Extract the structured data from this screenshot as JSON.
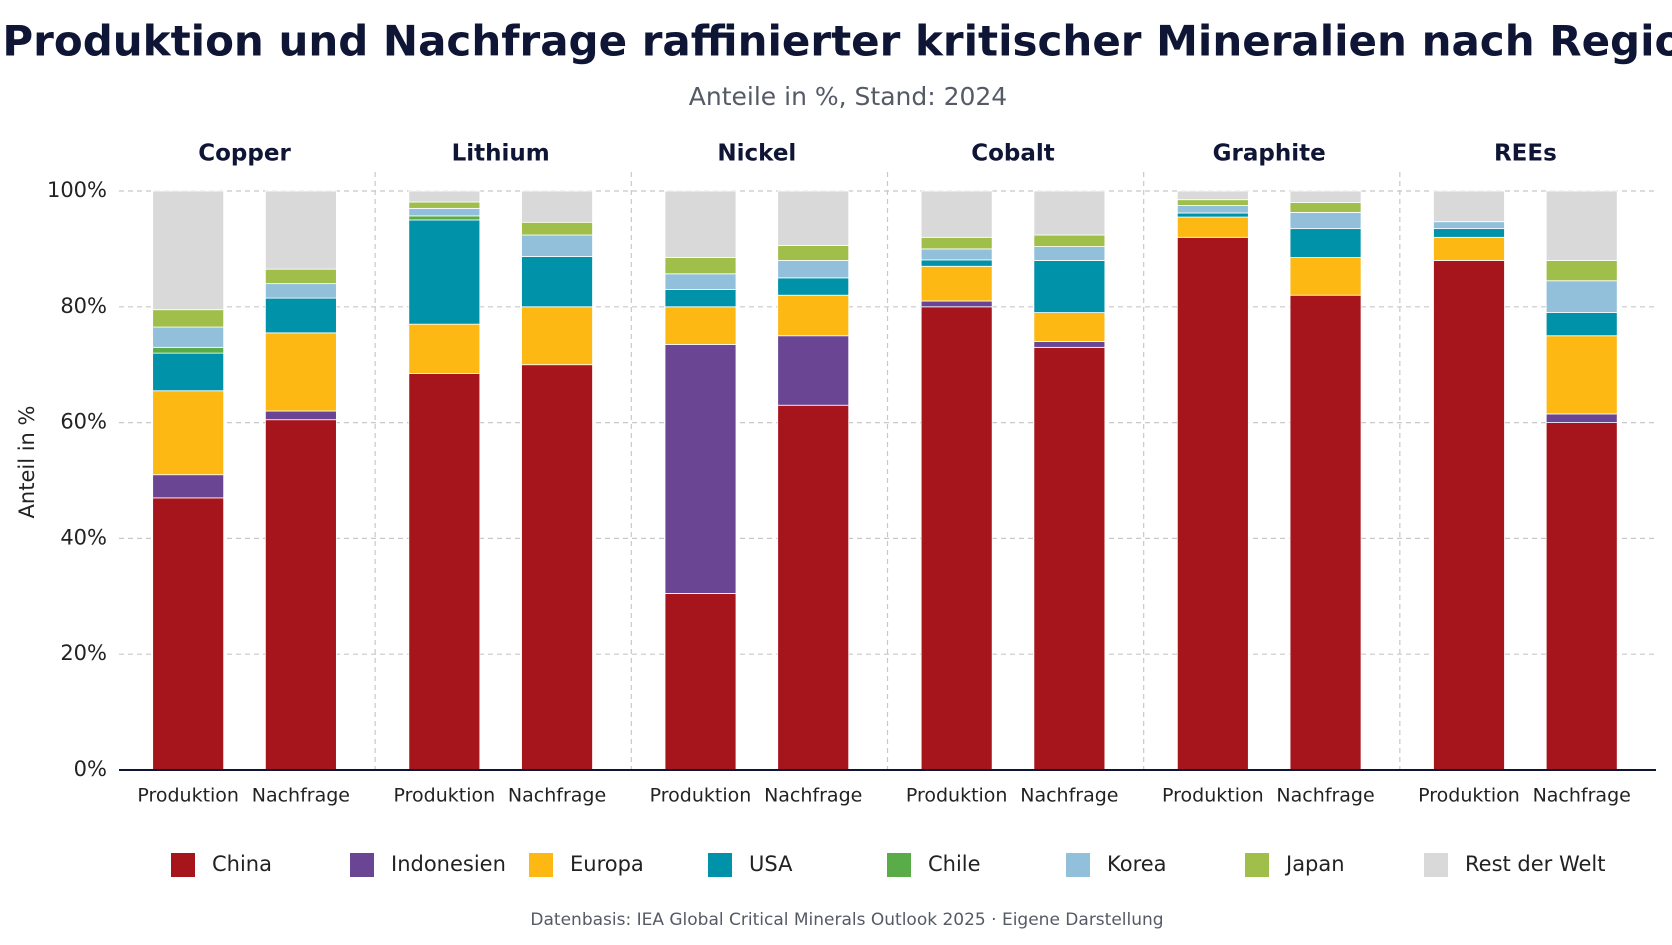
{
  "chart_data": {
    "type": "stacked_bar",
    "title": "Produktion und Nachfrage raffinierter kritischer Mineralien nach Regionen",
    "subtitle": "Anteile in %, Stand: 2024",
    "ylabel": "Anteil in %",
    "footer": "Datenbasis: IEA Global Critical Minerals Outlook 2025 · Eigene Darstellung",
    "groups": [
      "Copper",
      "Lithium",
      "Nickel",
      "Cobalt",
      "Graphite",
      "REEs"
    ],
    "categories": [
      "Produktion",
      "Nachfrage",
      "Produktion",
      "Nachfrage",
      "Produktion",
      "Nachfrage",
      "Produktion",
      "Nachfrage",
      "Produktion",
      "Nachfrage",
      "Produktion",
      "Nachfrage"
    ],
    "ylim": [
      0,
      100
    ],
    "yticks": [
      {
        "value": 0,
        "label": "0%"
      },
      {
        "value": 20,
        "label": "20%"
      },
      {
        "value": 40,
        "label": "40%"
      },
      {
        "value": 60,
        "label": "60%"
      },
      {
        "value": 80,
        "label": "80%"
      },
      {
        "value": 100,
        "label": "100%"
      }
    ],
    "grid": true,
    "legend": "bottom",
    "series": [
      {
        "name": "China",
        "color": "#a6141c",
        "values": [
          47,
          60.5,
          68.5,
          70,
          30.5,
          63,
          80,
          73,
          92,
          82,
          88,
          60
        ]
      },
      {
        "name": "Indonesien",
        "color": "#6a4593",
        "values": [
          4,
          1.5,
          0,
          0,
          43,
          12,
          1,
          1,
          0,
          0,
          0,
          1.5
        ]
      },
      {
        "name": "Europa",
        "color": "#fdb813",
        "values": [
          14.5,
          13.5,
          8.5,
          10,
          6.5,
          7,
          6,
          5,
          3.5,
          6.5,
          4,
          13.5
        ]
      },
      {
        "name": "USA",
        "color": "#0092a8",
        "values": [
          6.5,
          6,
          18,
          8.7,
          3,
          3,
          1.1,
          9,
          0.7,
          5,
          1.5,
          4
        ]
      },
      {
        "name": "Chile",
        "color": "#5aac48",
        "values": [
          1,
          0,
          0.7,
          0,
          0,
          0,
          0,
          0,
          0,
          0,
          0,
          0
        ]
      },
      {
        "name": "Korea",
        "color": "#92c0db",
        "values": [
          3.5,
          2.5,
          1.3,
          3.7,
          2.7,
          3,
          1.9,
          2.4,
          1.3,
          2.8,
          1.2,
          5.5
        ]
      },
      {
        "name": "Japan",
        "color": "#9fbf4a",
        "values": [
          3,
          2.5,
          1.1,
          2.2,
          2.8,
          2.6,
          2,
          2,
          1,
          1.7,
          0,
          3.5
        ]
      },
      {
        "name": "Rest der Welt",
        "color": "#d9d9d9",
        "values": [
          20.5,
          13.5,
          1.9,
          5.4,
          11.5,
          9.4,
          8,
          7.6,
          1.5,
          2,
          5.3,
          12
        ]
      }
    ]
  }
}
